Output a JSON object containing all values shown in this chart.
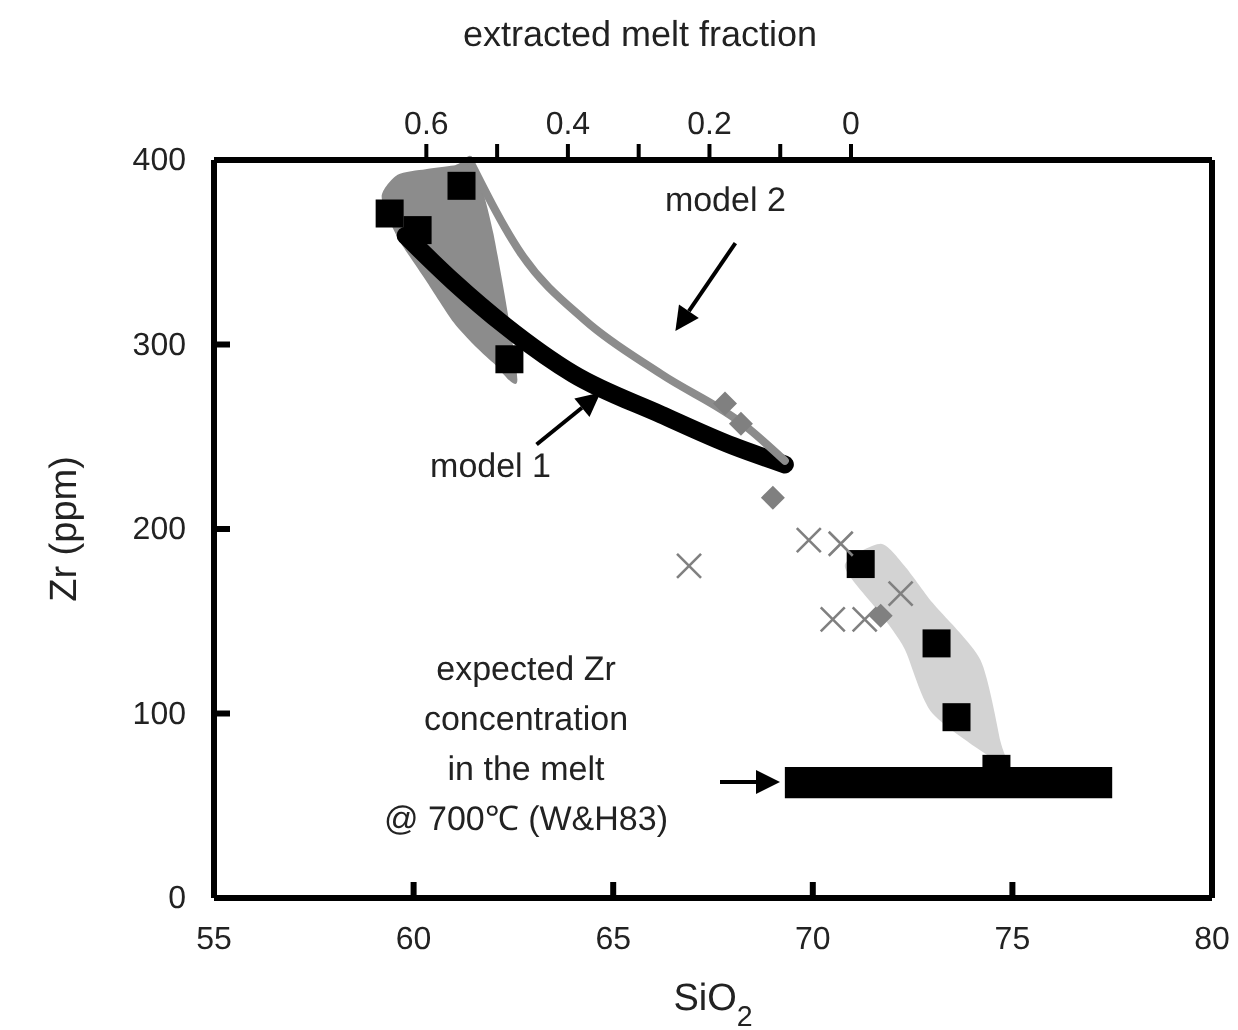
{
  "chart_data": {
    "type": "scatter",
    "xlabel": "SiO$_{2}$",
    "ylabel": "Zr (ppm)",
    "x2label": "extracted melt fraction",
    "xlim": [
      55,
      80
    ],
    "xticks": [
      55,
      60,
      65,
      70,
      75,
      80
    ],
    "ylim": [
      0,
      400
    ],
    "yticks": [
      0,
      100,
      200,
      300,
      400
    ],
    "x2lim": [
      0.9,
      -0.51
    ],
    "x2ticks": [
      0.6,
      {
        "value": 0.5,
        "label": null
      },
      0.4,
      {
        "value": 0.3,
        "label": null
      },
      0.2,
      {
        "value": 0.1,
        "label": null
      },
      0
    ],
    "grid": false,
    "series": [
      {
        "type": "area",
        "color": "#8c8c8c",
        "x": [
          59.2,
          59.6,
          60.3,
          61.0,
          61.5,
          62.0,
          62.6,
          62.0,
          61.5,
          61.0,
          60.3,
          59.6
        ],
        "values": [
          380,
          392,
          395,
          397,
          398,
          360,
          281,
          290,
          300,
          312,
          335,
          358
        ]
      },
      {
        "type": "area",
        "color": "#d3d3d3",
        "x": [
          70.8,
          71.7,
          72.3,
          73.0,
          74.2,
          74.7,
          74.8,
          73.0,
          72.3,
          71.7
        ],
        "values": [
          180,
          192,
          180,
          160,
          129,
          85,
          72,
          100,
          135,
          154
        ]
      },
      {
        "type": "area",
        "color": "#000000",
        "x": [
          69.3,
          77.5,
          77.5,
          69.3,
          69.3
        ],
        "values": [
          71,
          71,
          54,
          54,
          62
        ]
      },
      {
        "type": "line",
        "color": "#000000",
        "x": [
          59.8,
          61.0,
          62.3,
          64.0,
          66.2,
          68.0,
          69.3
        ],
        "values": [
          359,
          334,
          310,
          284,
          262,
          245,
          235
        ]
      },
      {
        "type": "line",
        "color": "#8c8c8c",
        "x": [
          61.4,
          62.7,
          64.3,
          66.2,
          68.3,
          69.3
        ],
        "values": [
          400,
          349,
          313,
          284,
          256,
          237
        ]
      },
      {
        "type": "scatter",
        "marker": "square",
        "color": "#000000",
        "x": [
          59.4,
          60.1,
          61.2,
          62.4,
          71.2,
          73.1,
          73.6,
          74.6
        ],
        "values": [
          371,
          362,
          386,
          292,
          181,
          138,
          98,
          70
        ]
      },
      {
        "type": "scatter",
        "marker": "diamond",
        "color": "#808080",
        "x": [
          67.8,
          68.2,
          69.0,
          71.7
        ],
        "values": [
          268,
          257,
          217,
          153
        ]
      },
      {
        "type": "scatter",
        "marker": "cross",
        "color": "#808080",
        "x": [
          66.9,
          69.9,
          70.7,
          72.2,
          70.5,
          71.3
        ],
        "values": [
          180,
          194,
          192,
          165,
          151,
          151
        ]
      }
    ],
    "annotations": [
      "model 2",
      {
        "text": "model 1",
        "x": 64.8,
        "y": 276
      },
      "expected Zr\nconcentration\nin the melt\n@ 700℃ (W&H83)"
    ]
  }
}
